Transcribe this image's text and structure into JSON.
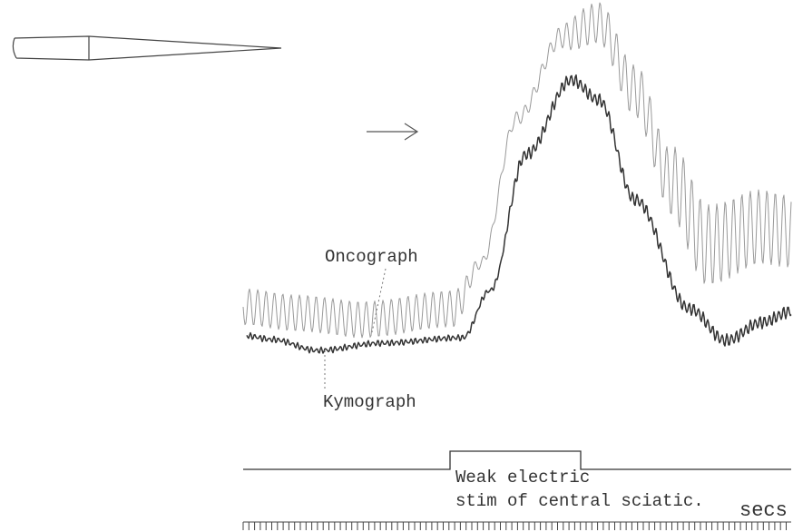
{
  "labels": {
    "oncograph": "Oncograph",
    "kymograph": "Kymograph"
  },
  "signal": {
    "line1": "Weak electric",
    "line2": "stim of central sciatic."
  },
  "time_unit": "secs"
}
